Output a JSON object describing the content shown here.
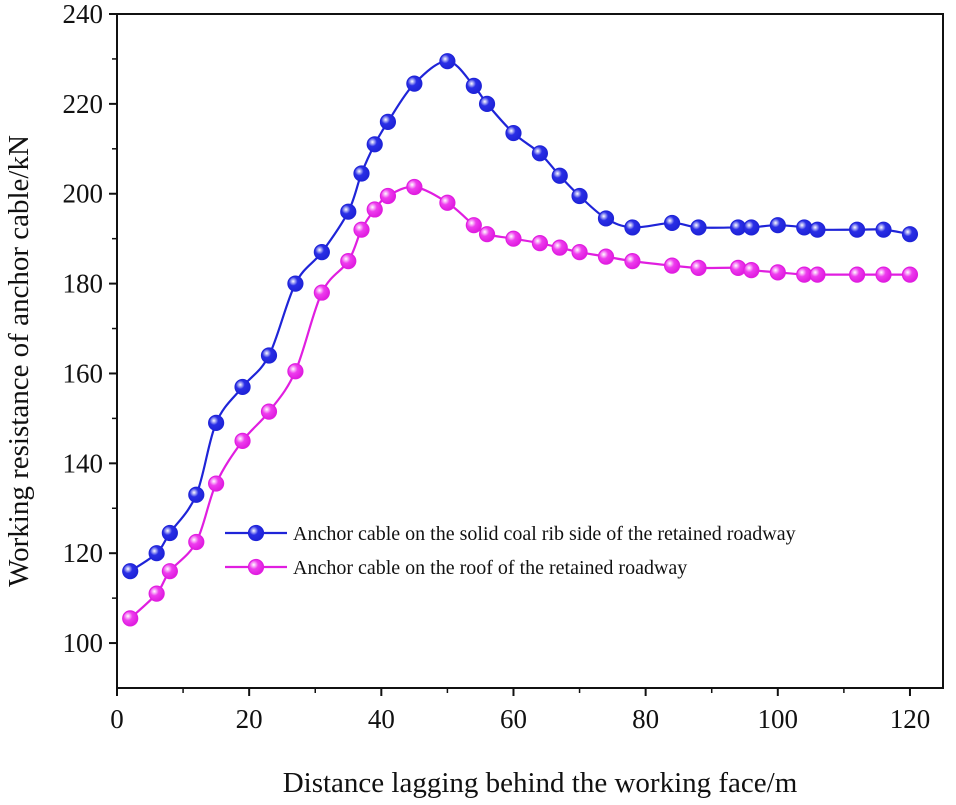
{
  "chart_data": {
    "type": "line",
    "title": "",
    "xlabel": "Distance lagging behind the working face/m",
    "ylabel": "Working resistance of anchor cable/kN",
    "xlim": [
      0,
      125
    ],
    "ylim": [
      90,
      240
    ],
    "xticks": [
      0,
      20,
      40,
      60,
      80,
      100,
      120
    ],
    "yticks": [
      100,
      120,
      140,
      160,
      180,
      200,
      220,
      240
    ],
    "grid": false,
    "legend_position": "lower-right",
    "series": [
      {
        "name": "Anchor cable on the solid coal rib side of the retained roadway",
        "color": "#1f24d8",
        "marker_color": "#2a2ee6",
        "x": [
          2,
          6,
          8,
          12,
          15,
          19,
          23,
          27,
          31,
          35,
          37,
          39,
          41,
          45,
          50,
          54,
          56,
          60,
          64,
          67,
          70,
          74,
          78,
          84,
          88,
          94,
          96,
          100,
          104,
          106,
          112,
          116,
          120
        ],
        "y": [
          116,
          120,
          124.5,
          133,
          149,
          157,
          164,
          180,
          187,
          196,
          204.5,
          211,
          216,
          224.5,
          229.5,
          224,
          220,
          213.5,
          209,
          204,
          199.5,
          194.5,
          192.5,
          193.5,
          192.5,
          192.5,
          192.5,
          193,
          192.5,
          192,
          192,
          192,
          191
        ]
      },
      {
        "name": "Anchor cable on the roof of the retained roadway",
        "color": "#e01ee0",
        "marker_color": "#ee3cee",
        "x": [
          2,
          6,
          8,
          12,
          15,
          19,
          23,
          27,
          31,
          35,
          37,
          39,
          41,
          45,
          50,
          54,
          56,
          60,
          64,
          67,
          70,
          74,
          78,
          84,
          88,
          94,
          96,
          100,
          104,
          106,
          112,
          116,
          120
        ],
        "y": [
          105.5,
          111,
          116,
          122.5,
          135.5,
          145,
          151.5,
          160.5,
          178,
          185,
          192,
          196.5,
          199.5,
          201.5,
          198,
          193,
          191,
          190,
          189,
          188,
          187,
          186,
          185,
          184,
          183.5,
          183.5,
          183,
          182.5,
          182,
          182,
          182,
          182,
          182
        ]
      }
    ]
  }
}
